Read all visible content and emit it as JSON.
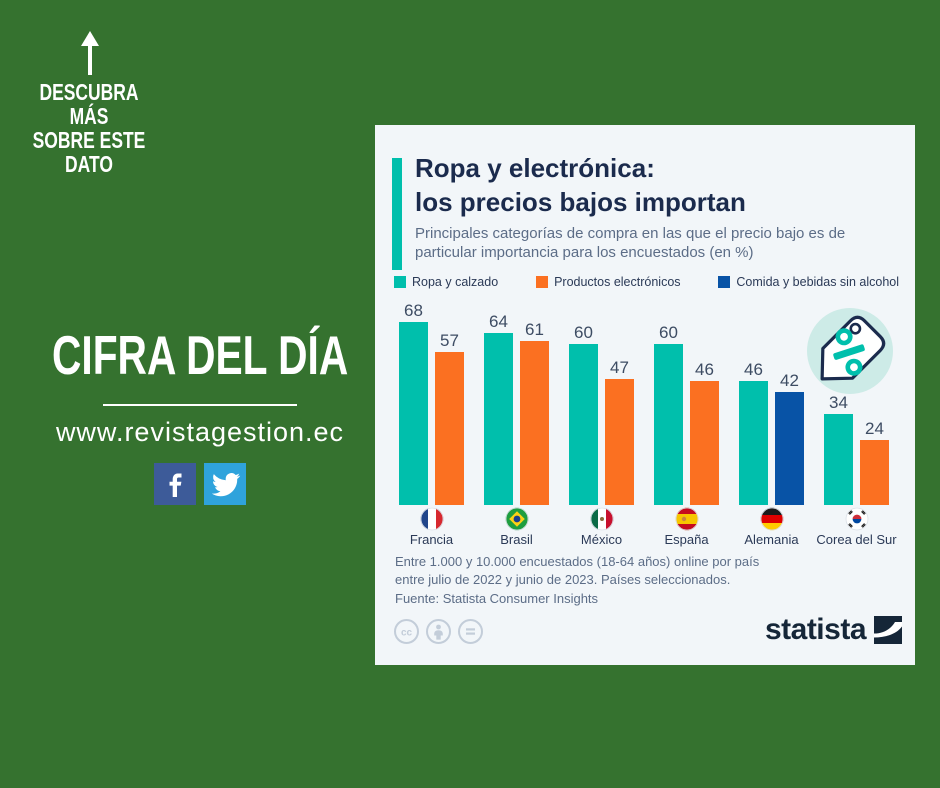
{
  "colors": {
    "background_green": "#35722f",
    "card_background": "#f2f6f9",
    "title_navy": "#1b2b4d",
    "subtitle_gray": "#5c6d87",
    "teal": "#00bfac",
    "orange": "#fb7021",
    "blue": "#0853a6",
    "facebook_blue": "#3d5b99",
    "twitter_blue": "#2fa3dc",
    "tag_circle_mint": "#cdebe7",
    "license_gray": "#c3cdd9",
    "brand_navy": "#152638"
  },
  "promo": {
    "arrow_icon": "up-arrow-icon",
    "discover_line1": "DESCUBRA MÁS",
    "discover_line2": "SOBRE ESTE",
    "discover_line3": "DATO",
    "headline": "CIFRA DEL DÍA",
    "website": "www.revistagestion.ec",
    "social_icons": [
      "facebook-icon",
      "twitter-icon"
    ]
  },
  "card": {
    "title_line1": "Ropa y electrónica:",
    "title_line2": "los precios bajos importan",
    "subtitle": "Principales categorías de compra en las que el precio bajo es de particular importancia para los encuestados (en %)",
    "tag_icon": "discount-tag-icon",
    "footnote_line1": "Entre 1.000 y 10.000 encuestados (18-64 años) online por país",
    "footnote_line2": "entre julio de 2022 y junio de 2023. Países seleccionados.",
    "source": "Fuente: Statista Consumer Insights",
    "license_icons": [
      "cc-icon",
      "attribution-icon",
      "equal-icon"
    ],
    "brand": "statista"
  },
  "chart_data": {
    "type": "bar",
    "title": "Ropa y electrónica: los precios bajos importan",
    "subtitle": "Principales categorías de compra en las que el precio bajo es de particular importancia para los encuestados (en %)",
    "unit": "%",
    "ylim": [
      0,
      70
    ],
    "grid": false,
    "legend_position": "top",
    "legend": [
      "Ropa y calzado",
      "Productos electrónicos",
      "Comida y bebidas sin alcohol"
    ],
    "series_colors": {
      "Ropa y calzado": "#00bfac",
      "Productos electrónicos": "#fb7021",
      "Comida y bebidas sin alcohol": "#0853a6"
    },
    "categories": [
      "Francia",
      "Brasil",
      "México",
      "España",
      "Alemania",
      "Corea del Sur"
    ],
    "groups": [
      {
        "country": "Francia",
        "flag": "francia-flag-icon",
        "bars": [
          {
            "series": "Ropa y calzado",
            "value": 68
          },
          {
            "series": "Productos electrónicos",
            "value": 57
          }
        ]
      },
      {
        "country": "Brasil",
        "flag": "brasil-flag-icon",
        "bars": [
          {
            "series": "Ropa y calzado",
            "value": 64
          },
          {
            "series": "Productos electrónicos",
            "value": 61
          }
        ]
      },
      {
        "country": "México",
        "flag": "mexico-flag-icon",
        "bars": [
          {
            "series": "Ropa y calzado",
            "value": 60
          },
          {
            "series": "Productos electrónicos",
            "value": 47
          }
        ]
      },
      {
        "country": "España",
        "flag": "espana-flag-icon",
        "bars": [
          {
            "series": "Ropa y calzado",
            "value": 60
          },
          {
            "series": "Productos electrónicos",
            "value": 46
          }
        ]
      },
      {
        "country": "Alemania",
        "flag": "alemania-flag-icon",
        "bars": [
          {
            "series": "Ropa y calzado",
            "value": 46
          },
          {
            "series": "Comida y bebidas sin alcohol",
            "value": 42
          }
        ]
      },
      {
        "country": "Corea del Sur",
        "flag": "corea-del-sur-flag-icon",
        "bars": [
          {
            "series": "Ropa y calzado",
            "value": 34
          },
          {
            "series": "Productos electrónicos",
            "value": 24
          }
        ]
      }
    ]
  }
}
